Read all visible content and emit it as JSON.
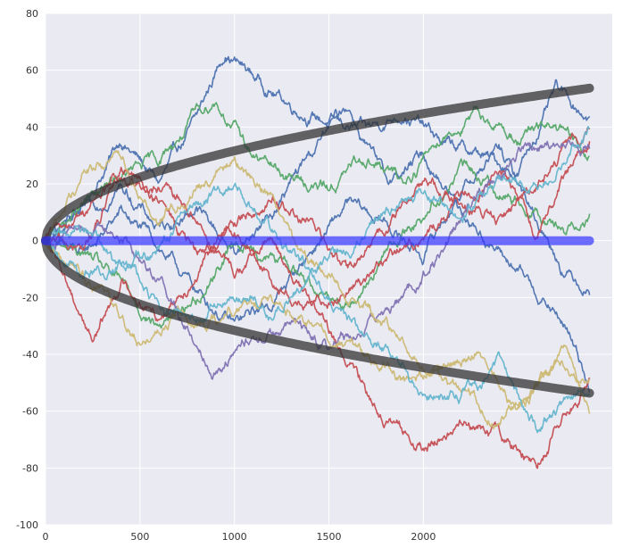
{
  "chart_data": {
    "type": "line",
    "title": "",
    "xlabel": "",
    "ylabel": "",
    "xlim": [
      0,
      3000
    ],
    "ylim": [
      -100,
      80
    ],
    "x_ticks": [
      0,
      500,
      1000,
      1500,
      2000
    ],
    "y_ticks": [
      -100,
      -80,
      -60,
      -40,
      -20,
      0,
      20,
      40,
      60,
      80
    ],
    "grid": true,
    "legend": "none",
    "background": "#EAEAF2",
    "n_steps": 2880,
    "series": [
      {
        "color": "#4C72B0",
        "x": [
          0,
          200,
          400,
          600,
          800,
          950,
          1100,
          1300,
          1500,
          1700,
          1900,
          2100,
          2300,
          2500,
          2700,
          2880
        ],
        "values": [
          0,
          12,
          36,
          20,
          42,
          67,
          58,
          48,
          42,
          38,
          46,
          34,
          30,
          24,
          52,
          44
        ]
      },
      {
        "color": "#4C72B0",
        "x": [
          0,
          200,
          400,
          600,
          800,
          1000,
          1200,
          1400,
          1600,
          1800,
          2000,
          2200,
          2400,
          2600,
          2750,
          2880
        ],
        "values": [
          0,
          -6,
          10,
          -2,
          -18,
          -30,
          -22,
          -4,
          12,
          6,
          -5,
          18,
          32,
          8,
          -10,
          -16
        ]
      },
      {
        "color": "#4C72B0",
        "x": [
          0,
          200,
          400,
          600,
          800,
          1000,
          1200,
          1400,
          1600,
          1800,
          2000,
          2200,
          2400,
          2600,
          2750,
          2880
        ],
        "values": [
          0,
          8,
          20,
          4,
          12,
          -4,
          10,
          30,
          48,
          20,
          30,
          12,
          -4,
          -18,
          -30,
          -50
        ]
      },
      {
        "color": "#55A868",
        "x": [
          0,
          200,
          400,
          600,
          800,
          900,
          1100,
          1300,
          1500,
          1700,
          1900,
          2100,
          2300,
          2500,
          2700,
          2880
        ],
        "values": [
          0,
          12,
          22,
          28,
          44,
          50,
          30,
          22,
          18,
          30,
          20,
          38,
          44,
          36,
          40,
          28
        ]
      },
      {
        "color": "#55A868",
        "x": [
          0,
          200,
          400,
          600,
          800,
          1000,
          1200,
          1400,
          1600,
          1800,
          2000,
          2200,
          2400,
          2600,
          2750,
          2880
        ],
        "values": [
          0,
          -4,
          -16,
          -30,
          -20,
          0,
          -6,
          -14,
          -22,
          -4,
          10,
          26,
          18,
          12,
          4,
          10
        ]
      },
      {
        "color": "#C44E52",
        "x": [
          0,
          150,
          250,
          400,
          600,
          800,
          1000,
          1200,
          1400,
          1600,
          1800,
          2000,
          2200,
          2400,
          2600,
          2880
        ],
        "values": [
          0,
          -20,
          -34,
          -14,
          -26,
          -10,
          4,
          -14,
          -24,
          -16,
          -8,
          2,
          14,
          6,
          22,
          40
        ]
      },
      {
        "color": "#C44E52",
        "x": [
          0,
          200,
          400,
          600,
          800,
          1000,
          1200,
          1400,
          1600,
          1800,
          2000,
          2200,
          2400,
          2600,
          2750,
          2880
        ],
        "values": [
          0,
          -4,
          22,
          18,
          8,
          -12,
          0,
          -22,
          -44,
          -62,
          -74,
          -64,
          -70,
          -78,
          -60,
          -48
        ]
      },
      {
        "color": "#C44E52",
        "x": [
          0,
          200,
          400,
          600,
          800,
          1000,
          1200,
          1400,
          1600,
          1800,
          2000,
          2200,
          2400,
          2600,
          2750,
          2880
        ],
        "values": [
          0,
          10,
          24,
          14,
          -6,
          6,
          16,
          6,
          -12,
          4,
          22,
          14,
          26,
          2,
          24,
          38
        ]
      },
      {
        "color": "#8172B2",
        "x": [
          0,
          200,
          400,
          600,
          800,
          900,
          1100,
          1300,
          1500,
          1700,
          1900,
          2100,
          2300,
          2500,
          2700,
          2880
        ],
        "values": [
          0,
          6,
          2,
          -12,
          -36,
          -44,
          -34,
          -30,
          -36,
          -30,
          -20,
          -4,
          16,
          30,
          36,
          32
        ]
      },
      {
        "color": "#CCB974",
        "x": [
          0,
          200,
          400,
          600,
          800,
          1000,
          1200,
          1400,
          1600,
          1800,
          2000,
          2200,
          2400,
          2600,
          2750,
          2880
        ],
        "values": [
          0,
          24,
          30,
          8,
          20,
          28,
          16,
          -6,
          -18,
          -30,
          -44,
          -54,
          -62,
          -52,
          -40,
          -62
        ]
      },
      {
        "color": "#CCB974",
        "x": [
          0,
          150,
          350,
          500,
          700,
          900,
          1100,
          1300,
          1500,
          1700,
          1900,
          2100,
          2300,
          2500,
          2700,
          2880
        ],
        "values": [
          0,
          -10,
          -20,
          -36,
          -26,
          -30,
          -20,
          -26,
          -34,
          -40,
          -50,
          -46,
          -38,
          -60,
          -42,
          -48
        ]
      },
      {
        "color": "#64B5CD",
        "x": [
          0,
          200,
          400,
          600,
          800,
          1000,
          1200,
          1400,
          1600,
          1800,
          2000,
          2200,
          2400,
          2600,
          2750,
          2880
        ],
        "values": [
          0,
          -14,
          -8,
          -22,
          -30,
          -18,
          -26,
          -12,
          -28,
          -36,
          -54,
          -56,
          -44,
          -66,
          -58,
          -50
        ]
      },
      {
        "color": "#64B5CD",
        "x": [
          0,
          200,
          400,
          600,
          800,
          1000,
          1200,
          1400,
          1600,
          1800,
          2000,
          2200,
          2400,
          2600,
          2750,
          2880
        ],
        "values": [
          0,
          6,
          -10,
          -4,
          12,
          18,
          6,
          -10,
          -4,
          10,
          16,
          8,
          20,
          18,
          30,
          38
        ]
      }
    ],
    "reference_lines": [
      {
        "name": "+sqrt(n)",
        "color": "#333333",
        "formula": "+sqrt(x)"
      },
      {
        "name": "-sqrt(n)",
        "color": "#333333",
        "formula": "-sqrt(x)"
      },
      {
        "name": "mean",
        "color": "#3333FF",
        "formula": "0"
      }
    ]
  }
}
